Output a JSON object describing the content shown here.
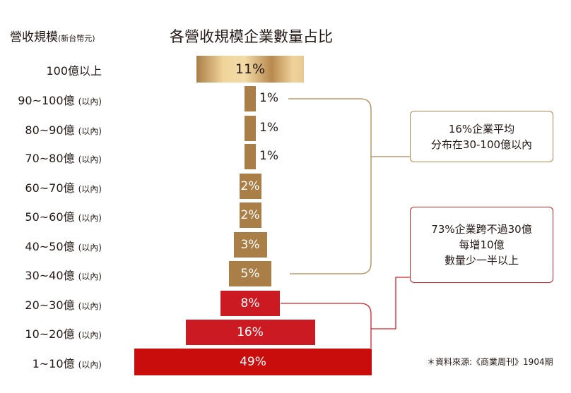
{
  "chart_data": {
    "type": "bar",
    "title": "各營收規模企業數量占比",
    "ylabel": "營收規模",
    "ylabel_unit": "(新台幣元)",
    "categories": [
      {
        "main": "100億以上",
        "sub": ""
      },
      {
        "main": "90~100億",
        "sub": "(以內)"
      },
      {
        "main": "80~90億",
        "sub": "(以內)"
      },
      {
        "main": "70~80億",
        "sub": "(以內)"
      },
      {
        "main": "60~70億",
        "sub": "(以內)"
      },
      {
        "main": "50~60億",
        "sub": "(以內)"
      },
      {
        "main": "40~50億",
        "sub": "(以內)"
      },
      {
        "main": "30~40億",
        "sub": "(以內)"
      },
      {
        "main": "20~30億",
        "sub": "(以內)"
      },
      {
        "main": "10~20億",
        "sub": "(以內)"
      },
      {
        "main": "1~10億",
        "sub": "(以內)"
      }
    ],
    "values": [
      11,
      1,
      1,
      1,
      2,
      2,
      3,
      5,
      8,
      16,
      49
    ],
    "labels": [
      "11%",
      "1%",
      "1%",
      "1%",
      "2%",
      "2%",
      "3%",
      "5%",
      "8%",
      "16%",
      "49%"
    ],
    "annotations": [
      {
        "lines": [
          "16%企業平均",
          "分布在30-100億以內"
        ],
        "color": "#b08850"
      },
      {
        "lines": [
          "73%企業跨不過30億",
          "每增10億",
          "數量少一半以上"
        ],
        "color": "#d0202a"
      }
    ],
    "source": "＊資料來源:《商業周刊》1904期"
  },
  "colors": {
    "gold": "#a97e47",
    "red": "#cc1a22",
    "red_dark": "#c90c0c"
  }
}
